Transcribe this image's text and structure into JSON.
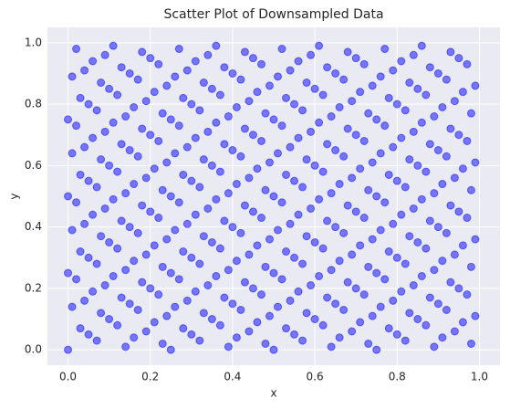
{
  "chart_data": {
    "type": "scatter",
    "title": "Scatter Plot of Downsampled Data",
    "x_label": "x",
    "y_label": "y",
    "color": "#0000ff",
    "grid": true,
    "xlim": [
      -0.05,
      1.05
    ],
    "ylim": [
      -0.05,
      1.05
    ],
    "xticks": [
      {
        "value": 0,
        "label": "0.0"
      },
      {
        "value": 0.2,
        "label": "0.2"
      },
      {
        "value": 0.4,
        "label": "0.4"
      },
      {
        "value": 0.6,
        "label": "0.6"
      },
      {
        "value": 0.8,
        "label": "0.8"
      },
      {
        "value": 1,
        "label": "1.0"
      }
    ],
    "yticks": [
      {
        "value": 0,
        "label": "0.0"
      },
      {
        "value": 0.2,
        "label": "0.2"
      },
      {
        "value": 0.4,
        "label": "0.4"
      },
      {
        "value": 0.6,
        "label": "0.6"
      },
      {
        "value": 0.8,
        "label": "0.8"
      },
      {
        "value": 1,
        "label": "1.0"
      }
    ],
    "x": [
      0.0,
      0.07,
      0.14,
      0.16,
      0.23,
      0.25,
      0.32,
      0.39,
      0.41,
      0.48,
      0.5,
      0.57,
      0.64,
      0.66,
      0.73,
      0.75,
      0.82,
      0.89,
      0.91,
      0.98,
      0.03,
      0.05,
      0.12,
      0.19,
      0.21,
      0.28,
      0.3,
      0.37,
      0.44,
      0.46,
      0.53,
      0.55,
      0.62,
      0.69,
      0.71,
      0.78,
      0.8,
      0.87,
      0.94,
      0.96,
      0.01,
      0.08,
      0.1,
      0.17,
      0.24,
      0.26,
      0.33,
      0.35,
      0.42,
      0.49,
      0.51,
      0.58,
      0.6,
      0.67,
      0.74,
      0.76,
      0.83,
      0.85,
      0.92,
      0.99,
      0.04,
      0.06,
      0.13,
      0.15,
      0.22,
      0.29,
      0.31,
      0.38,
      0.4,
      0.47,
      0.54,
      0.56,
      0.63,
      0.65,
      0.72,
      0.79,
      0.81,
      0.88,
      0.9,
      0.97,
      0.02,
      0.09,
      0.11,
      0.18,
      0.2,
      0.27,
      0.34,
      0.36,
      0.43,
      0.45,
      0.52,
      0.59,
      0.61,
      0.68,
      0.7,
      0.77,
      0.84,
      0.86,
      0.93,
      0.95,
      0.0,
      0.07,
      0.14,
      0.16,
      0.23,
      0.25,
      0.32,
      0.39,
      0.41,
      0.48,
      0.5,
      0.57,
      0.64,
      0.66,
      0.73,
      0.75,
      0.82,
      0.89,
      0.91,
      0.98,
      0.03,
      0.05,
      0.12,
      0.19,
      0.21,
      0.28,
      0.3,
      0.37,
      0.44,
      0.46,
      0.53,
      0.55,
      0.62,
      0.69,
      0.71,
      0.78,
      0.8,
      0.87,
      0.94,
      0.96,
      0.01,
      0.08,
      0.1,
      0.17,
      0.24,
      0.26,
      0.33,
      0.35,
      0.42,
      0.49,
      0.51,
      0.58,
      0.6,
      0.67,
      0.74,
      0.76,
      0.83,
      0.85,
      0.92,
      0.99,
      0.04,
      0.06,
      0.13,
      0.15,
      0.22,
      0.29,
      0.31,
      0.38,
      0.4,
      0.47,
      0.54,
      0.56,
      0.63,
      0.65,
      0.72,
      0.79,
      0.81,
      0.88,
      0.9,
      0.97,
      0.02,
      0.09,
      0.11,
      0.18,
      0.2,
      0.27,
      0.34,
      0.36,
      0.43,
      0.45,
      0.52,
      0.59,
      0.61,
      0.68,
      0.7,
      0.77,
      0.84,
      0.86,
      0.93,
      0.95,
      0.0,
      0.07,
      0.14,
      0.16,
      0.23,
      0.25,
      0.32,
      0.39,
      0.41,
      0.48,
      0.5,
      0.57,
      0.64,
      0.66,
      0.73,
      0.75,
      0.82,
      0.89,
      0.91,
      0.98,
      0.03,
      0.05,
      0.12,
      0.19,
      0.21,
      0.28,
      0.3,
      0.37,
      0.44,
      0.46,
      0.53,
      0.55,
      0.62,
      0.69,
      0.71,
      0.78,
      0.8,
      0.87,
      0.94,
      0.96,
      0.01,
      0.08,
      0.1,
      0.17,
      0.24,
      0.26,
      0.33,
      0.35,
      0.42,
      0.49,
      0.51,
      0.58,
      0.6,
      0.67,
      0.74,
      0.76,
      0.83,
      0.85,
      0.92,
      0.99,
      0.04,
      0.06,
      0.13,
      0.15,
      0.22,
      0.29,
      0.31,
      0.38,
      0.4,
      0.47,
      0.54,
      0.56,
      0.63,
      0.65,
      0.72,
      0.79,
      0.81,
      0.88,
      0.9,
      0.97,
      0.02,
      0.09,
      0.11,
      0.18,
      0.2,
      0.27,
      0.34,
      0.36,
      0.43,
      0.45,
      0.52,
      0.59,
      0.61,
      0.68,
      0.7,
      0.77,
      0.84,
      0.86,
      0.93,
      0.95,
      0.0,
      0.07,
      0.14,
      0.16,
      0.23,
      0.25,
      0.32,
      0.39,
      0.41,
      0.48,
      0.5,
      0.57,
      0.64,
      0.66,
      0.73,
      0.75,
      0.82,
      0.89,
      0.91,
      0.98,
      0.03,
      0.05,
      0.12,
      0.19,
      0.21,
      0.28,
      0.3,
      0.37,
      0.44,
      0.46,
      0.53,
      0.55,
      0.62,
      0.69,
      0.71,
      0.78,
      0.8,
      0.87,
      0.94,
      0.96,
      0.01,
      0.08,
      0.1,
      0.17,
      0.24,
      0.26,
      0.33,
      0.35,
      0.42,
      0.49,
      0.51,
      0.58,
      0.6,
      0.67,
      0.74,
      0.76,
      0.83,
      0.85,
      0.92,
      0.99,
      0.04,
      0.06,
      0.13,
      0.15,
      0.22,
      0.29,
      0.31,
      0.38,
      0.4,
      0.47,
      0.54,
      0.56,
      0.63,
      0.65,
      0.72,
      0.79,
      0.81,
      0.88,
      0.9,
      0.97,
      0.02,
      0.09,
      0.11,
      0.18,
      0.2,
      0.27,
      0.34,
      0.36,
      0.43,
      0.45,
      0.52,
      0.59,
      0.61,
      0.68,
      0.7,
      0.77,
      0.84,
      0.86,
      0.93,
      0.95
    ],
    "y": [
      0.0,
      0.03,
      0.01,
      0.04,
      0.02,
      0.0,
      0.03,
      0.01,
      0.04,
      0.02,
      0.0,
      0.03,
      0.01,
      0.04,
      0.02,
      0.0,
      0.03,
      0.01,
      0.04,
      0.02,
      0.07,
      0.05,
      0.08,
      0.06,
      0.09,
      0.07,
      0.05,
      0.08,
      0.06,
      0.09,
      0.07,
      0.05,
      0.08,
      0.06,
      0.09,
      0.07,
      0.05,
      0.08,
      0.06,
      0.09,
      0.14,
      0.12,
      0.1,
      0.13,
      0.11,
      0.14,
      0.12,
      0.1,
      0.13,
      0.11,
      0.14,
      0.12,
      0.1,
      0.13,
      0.11,
      0.14,
      0.12,
      0.1,
      0.13,
      0.11,
      0.16,
      0.19,
      0.17,
      0.15,
      0.18,
      0.16,
      0.19,
      0.17,
      0.15,
      0.18,
      0.16,
      0.19,
      0.17,
      0.15,
      0.18,
      0.16,
      0.19,
      0.17,
      0.15,
      0.18,
      0.23,
      0.21,
      0.24,
      0.22,
      0.2,
      0.23,
      0.21,
      0.24,
      0.22,
      0.2,
      0.23,
      0.21,
      0.24,
      0.22,
      0.2,
      0.23,
      0.21,
      0.24,
      0.22,
      0.2,
      0.25,
      0.28,
      0.26,
      0.29,
      0.27,
      0.25,
      0.28,
      0.26,
      0.29,
      0.27,
      0.25,
      0.28,
      0.26,
      0.29,
      0.27,
      0.25,
      0.28,
      0.26,
      0.29,
      0.27,
      0.32,
      0.3,
      0.33,
      0.31,
      0.34,
      0.32,
      0.3,
      0.33,
      0.31,
      0.34,
      0.32,
      0.3,
      0.33,
      0.31,
      0.34,
      0.32,
      0.3,
      0.33,
      0.31,
      0.34,
      0.39,
      0.37,
      0.35,
      0.38,
      0.36,
      0.39,
      0.37,
      0.35,
      0.38,
      0.36,
      0.39,
      0.37,
      0.35,
      0.38,
      0.36,
      0.39,
      0.37,
      0.35,
      0.38,
      0.36,
      0.41,
      0.44,
      0.42,
      0.4,
      0.43,
      0.41,
      0.44,
      0.42,
      0.4,
      0.43,
      0.41,
      0.44,
      0.42,
      0.4,
      0.43,
      0.41,
      0.44,
      0.42,
      0.4,
      0.43,
      0.48,
      0.46,
      0.49,
      0.47,
      0.45,
      0.48,
      0.46,
      0.49,
      0.47,
      0.45,
      0.48,
      0.46,
      0.49,
      0.47,
      0.45,
      0.48,
      0.46,
      0.49,
      0.47,
      0.45,
      0.5,
      0.53,
      0.51,
      0.54,
      0.52,
      0.5,
      0.53,
      0.51,
      0.54,
      0.52,
      0.5,
      0.53,
      0.51,
      0.54,
      0.52,
      0.5,
      0.53,
      0.51,
      0.54,
      0.52,
      0.57,
      0.55,
      0.58,
      0.56,
      0.59,
      0.57,
      0.55,
      0.58,
      0.56,
      0.59,
      0.57,
      0.55,
      0.58,
      0.56,
      0.59,
      0.57,
      0.55,
      0.58,
      0.56,
      0.59,
      0.64,
      0.62,
      0.6,
      0.63,
      0.61,
      0.64,
      0.62,
      0.6,
      0.63,
      0.61,
      0.64,
      0.62,
      0.6,
      0.63,
      0.61,
      0.64,
      0.62,
      0.6,
      0.63,
      0.61,
      0.66,
      0.69,
      0.67,
      0.65,
      0.68,
      0.66,
      0.69,
      0.67,
      0.65,
      0.68,
      0.66,
      0.69,
      0.67,
      0.65,
      0.68,
      0.66,
      0.69,
      0.67,
      0.65,
      0.68,
      0.73,
      0.71,
      0.74,
      0.72,
      0.7,
      0.73,
      0.71,
      0.74,
      0.72,
      0.7,
      0.73,
      0.71,
      0.74,
      0.72,
      0.7,
      0.73,
      0.71,
      0.74,
      0.72,
      0.7,
      0.75,
      0.78,
      0.76,
      0.79,
      0.77,
      0.75,
      0.78,
      0.76,
      0.79,
      0.77,
      0.75,
      0.78,
      0.76,
      0.79,
      0.77,
      0.75,
      0.78,
      0.76,
      0.79,
      0.77,
      0.82,
      0.8,
      0.83,
      0.81,
      0.84,
      0.82,
      0.8,
      0.83,
      0.81,
      0.84,
      0.82,
      0.8,
      0.83,
      0.81,
      0.84,
      0.82,
      0.8,
      0.83,
      0.81,
      0.84,
      0.89,
      0.87,
      0.85,
      0.88,
      0.86,
      0.89,
      0.87,
      0.85,
      0.88,
      0.86,
      0.89,
      0.87,
      0.85,
      0.88,
      0.86,
      0.89,
      0.87,
      0.85,
      0.88,
      0.86,
      0.91,
      0.94,
      0.92,
      0.9,
      0.93,
      0.91,
      0.94,
      0.92,
      0.9,
      0.93,
      0.91,
      0.94,
      0.92,
      0.9,
      0.93,
      0.91,
      0.94,
      0.92,
      0.9,
      0.93,
      0.98,
      0.96,
      0.99,
      0.97,
      0.95,
      0.98,
      0.96,
      0.99,
      0.97,
      0.95,
      0.98,
      0.96,
      0.99,
      0.97,
      0.95,
      0.98,
      0.96,
      0.99,
      0.97,
      0.95
    ]
  }
}
